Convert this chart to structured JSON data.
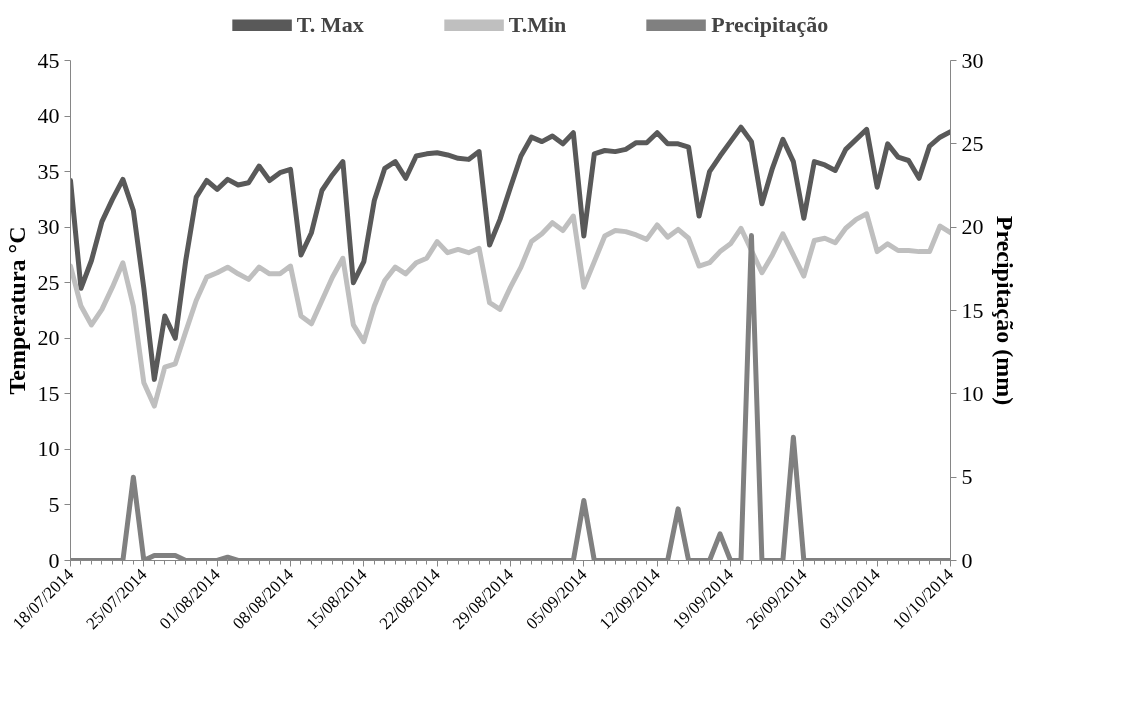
{
  "chart_data": {
    "type": "line",
    "ylabel": "Temperatura °C",
    "y2label": "Precipitação (mm)",
    "x": [
      "2014-07-18",
      "2014-07-19",
      "2014-07-20",
      "2014-07-21",
      "2014-07-22",
      "2014-07-23",
      "2014-07-24",
      "2014-07-25",
      "2014-07-26",
      "2014-07-27",
      "2014-07-28",
      "2014-07-29",
      "2014-07-30",
      "2014-07-31",
      "2014-08-01",
      "2014-08-02",
      "2014-08-03",
      "2014-08-04",
      "2014-08-05",
      "2014-08-06",
      "2014-08-07",
      "2014-08-08",
      "2014-08-09",
      "2014-08-10",
      "2014-08-11",
      "2014-08-12",
      "2014-08-13",
      "2014-08-14",
      "2014-08-15",
      "2014-08-16",
      "2014-08-17",
      "2014-08-18",
      "2014-08-19",
      "2014-08-20",
      "2014-08-21",
      "2014-08-22",
      "2014-08-23",
      "2014-08-24",
      "2014-08-25",
      "2014-08-26",
      "2014-08-27",
      "2014-08-28",
      "2014-08-29",
      "2014-08-30",
      "2014-08-31",
      "2014-09-01",
      "2014-09-02",
      "2014-09-03",
      "2014-09-04",
      "2014-09-05",
      "2014-09-06",
      "2014-09-07",
      "2014-09-08",
      "2014-09-09",
      "2014-09-10",
      "2014-09-11",
      "2014-09-12",
      "2014-09-13",
      "2014-09-14",
      "2014-09-15",
      "2014-09-16",
      "2014-09-17",
      "2014-09-18",
      "2014-09-19",
      "2014-09-20",
      "2014-09-21",
      "2014-09-22",
      "2014-09-23",
      "2014-09-24",
      "2014-09-25",
      "2014-09-26",
      "2014-09-27",
      "2014-09-28",
      "2014-09-29",
      "2014-09-30",
      "2014-10-01",
      "2014-10-02",
      "2014-10-03",
      "2014-10-04",
      "2014-10-05",
      "2014-10-06",
      "2014-10-07",
      "2014-10-08",
      "2014-10-09",
      "2014-10-10"
    ],
    "xlim": [
      "2014-07-18",
      "2014-10-10"
    ],
    "xticks": [
      {
        "value": "2014-07-18",
        "label": "18/07/2014"
      },
      {
        "value": "2014-07-25",
        "label": "25/07/2014"
      },
      {
        "value": "2014-08-01",
        "label": "01/08/2014"
      },
      {
        "value": "2014-08-08",
        "label": "08/08/2014"
      },
      {
        "value": "2014-08-15",
        "label": "15/08/2014"
      },
      {
        "value": "2014-08-22",
        "label": "22/08/2014"
      },
      {
        "value": "2014-08-29",
        "label": "29/08/2014"
      },
      {
        "value": "2014-09-05",
        "label": "05/09/2014"
      },
      {
        "value": "2014-09-12",
        "label": "12/09/2014"
      },
      {
        "value": "2014-09-19",
        "label": "19/09/2014"
      },
      {
        "value": "2014-09-26",
        "label": "26/09/2014"
      },
      {
        "value": "2014-10-03",
        "label": "03/10/2014"
      },
      {
        "value": "2014-10-10",
        "label": "10/10/2014"
      }
    ],
    "ylim": [
      0,
      45
    ],
    "yticks": [
      0,
      5,
      10,
      15,
      20,
      25,
      30,
      35,
      40,
      45
    ],
    "y2lim": [
      0,
      30
    ],
    "y2ticks": [
      0,
      5,
      10,
      15,
      20,
      25,
      30
    ],
    "grid": false,
    "legend": "top",
    "marker": "none",
    "line_style": "solid",
    "series": [
      {
        "name": "T. Max",
        "color": "#595959",
        "values": [
          34.2,
          24.5,
          27,
          30.5,
          32.5,
          34.3,
          31.5,
          24.5,
          16.3,
          22,
          20,
          27,
          32.7,
          34.2,
          33.4,
          34.3,
          33.8,
          34,
          35.5,
          34.2,
          34.9,
          35.2,
          27.5,
          29.5,
          33.3,
          34.7,
          35.9,
          25,
          26.9,
          32.4,
          35.3,
          35.9,
          34.4,
          36.4,
          36.6,
          36.7,
          36.5,
          36.2,
          36.1,
          36.8,
          28.4,
          30.7,
          33.6,
          36.4,
          38.1,
          37.7,
          38.2,
          37.5,
          38.5,
          29.2,
          36.6,
          36.9,
          36.8,
          37,
          37.6,
          37.6,
          38.5,
          37.5,
          37.5,
          37.2,
          31,
          35,
          36.4,
          37.7,
          39,
          37.7,
          32.1,
          35.3,
          37.9,
          35.9,
          30.8,
          35.9,
          35.6,
          35.1,
          37,
          37.9,
          38.8,
          33.6,
          37.5,
          36.3,
          36,
          34.4,
          37.3,
          38.1,
          38.6
        ]
      },
      {
        "name": "T.Min",
        "color": "#bfbfbf",
        "values": [
          26.5,
          22.9,
          21.2,
          22.6,
          24.6,
          26.8,
          22.9,
          16,
          13.9,
          17.4,
          17.7,
          20.6,
          23.4,
          25.5,
          25.9,
          26.4,
          25.8,
          25.3,
          26.4,
          25.8,
          25.8,
          26.5,
          22,
          21.3,
          23.4,
          25.5,
          27.2,
          21.2,
          19.7,
          22.9,
          25.2,
          26.4,
          25.8,
          26.8,
          27.2,
          28.7,
          27.7,
          28,
          27.7,
          28.1,
          23.2,
          22.6,
          24.6,
          26.4,
          28.7,
          29.4,
          30.4,
          29.7,
          31,
          24.6,
          26.9,
          29.2,
          29.7,
          29.6,
          29.3,
          28.9,
          30.2,
          29.1,
          29.8,
          29,
          26.5,
          26.8,
          27.8,
          28.5,
          29.9,
          27.9,
          25.9,
          27.5,
          29.4,
          27.5,
          25.6,
          28.8,
          29,
          28.6,
          29.9,
          30.7,
          31.2,
          27.8,
          28.5,
          27.9,
          27.9,
          27.8,
          27.8,
          30.1,
          29.5
        ]
      },
      {
        "name": "Precipitação",
        "color": "#808080",
        "axis": "y2",
        "values": [
          0,
          0,
          0,
          0,
          0,
          0,
          5,
          0,
          0.3,
          0.3,
          0.3,
          0,
          0,
          0,
          0,
          0.2,
          0,
          0,
          0,
          0,
          0,
          0,
          0,
          0,
          0,
          0,
          0,
          0,
          0,
          0,
          0,
          0,
          0,
          0,
          0,
          0,
          0,
          0,
          0,
          0,
          0,
          0,
          0,
          0,
          0,
          0,
          0,
          0,
          0,
          3.6,
          0,
          0,
          0,
          0,
          0,
          0,
          0,
          0,
          3.1,
          0,
          0,
          0,
          1.6,
          0,
          0,
          19.5,
          0,
          0,
          0,
          7.4,
          0,
          0,
          0,
          0,
          0,
          0,
          0,
          0,
          0,
          0,
          0,
          0,
          0,
          0,
          0
        ]
      }
    ]
  }
}
